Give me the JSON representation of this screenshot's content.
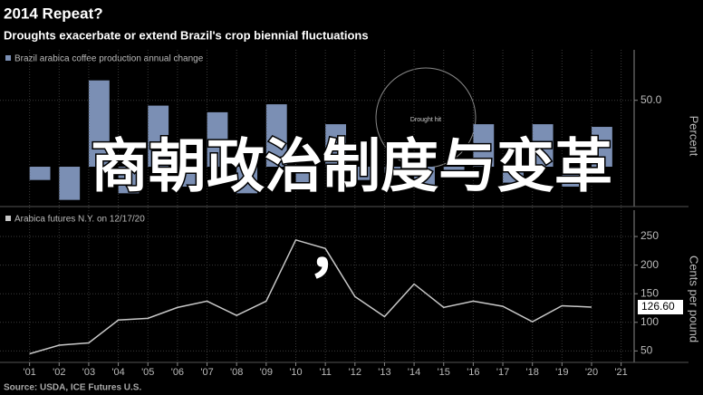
{
  "title": "2014 Repeat?",
  "subtitle": "Droughts exacerbate or extend Brazil's crop biennial fluctuations",
  "source": "Source: USDA, ICE Futures U.S.",
  "overlay": {
    "text": "商朝政治制度与变革",
    "comma": "，"
  },
  "chart_data": [
    {
      "type": "bar",
      "y_label": "Percent",
      "annotation": "Drought hit",
      "series": [
        {
          "name": "Brazil arabica coffee production annual change",
          "color": "#7b8fb4",
          "x": [
            2001,
            2002,
            2003,
            2004,
            2005,
            2006,
            2007,
            2008,
            2009,
            2010,
            2011,
            2012,
            2013,
            2014,
            2015,
            2016,
            2017,
            2018,
            2019,
            2020
          ],
          "values": [
            -10,
            -25,
            65,
            -20,
            46,
            -15,
            41,
            -20,
            47,
            -18,
            32,
            -10,
            -5,
            -15,
            -8,
            32,
            -12,
            32,
            -15,
            30
          ]
        }
      ],
      "xlim": [
        2000,
        2021.44
      ],
      "ylim": [
        -30,
        88
      ],
      "yticks": [
        {
          "value": 50,
          "label": "50.0"
        }
      ]
    },
    {
      "type": "line",
      "y_label": "Cents per pound",
      "series": [
        {
          "name": "Arabica futures N.Y. on 12/17/20",
          "color": "#c8c8c8",
          "x": [
            2001,
            2002,
            2003,
            2004,
            2005,
            2006,
            2007,
            2008,
            2009,
            2010,
            2011,
            2012,
            2013,
            2014,
            2015,
            2016,
            2017,
            2018,
            2019,
            2020
          ],
          "values": [
            45,
            60,
            64,
            104,
            107,
            126,
            137,
            112,
            137,
            244,
            229,
            145,
            110,
            167,
            126,
            137,
            128,
            101,
            129,
            126.6
          ],
          "value_labels": [
            null,
            null,
            null,
            null,
            null,
            null,
            null,
            null,
            null,
            null,
            null,
            null,
            null,
            null,
            null,
            null,
            null,
            null,
            null,
            "126.60"
          ]
        }
      ],
      "xlim": [
        2000,
        2021.44
      ],
      "ylim": [
        30,
        296
      ],
      "yticks": [
        50,
        100,
        150,
        200,
        250
      ],
      "xticks": [
        {
          "value": 2001,
          "label": "'01"
        },
        {
          "value": 2002,
          "label": "'02"
        },
        {
          "value": 2003,
          "label": "'03"
        },
        {
          "value": 2004,
          "label": "'04"
        },
        {
          "value": 2005,
          "label": "'05"
        },
        {
          "value": 2006,
          "label": "'06"
        },
        {
          "value": 2007,
          "label": "'07"
        },
        {
          "value": 2008,
          "label": "'08"
        },
        {
          "value": 2009,
          "label": "'09"
        },
        {
          "value": 2010,
          "label": "'10"
        },
        {
          "value": 2011,
          "label": "'11"
        },
        {
          "value": 2012,
          "label": "'12"
        },
        {
          "value": 2013,
          "label": "'13"
        },
        {
          "value": 2014,
          "label": "'14"
        },
        {
          "value": 2015,
          "label": "'15"
        },
        {
          "value": 2016,
          "label": "'16"
        },
        {
          "value": 2017,
          "label": "'17"
        },
        {
          "value": 2018,
          "label": "'18"
        },
        {
          "value": 2019,
          "label": "'19"
        },
        {
          "value": 2020,
          "label": "'20"
        },
        {
          "value": 2021,
          "label": "'21"
        }
      ]
    }
  ]
}
